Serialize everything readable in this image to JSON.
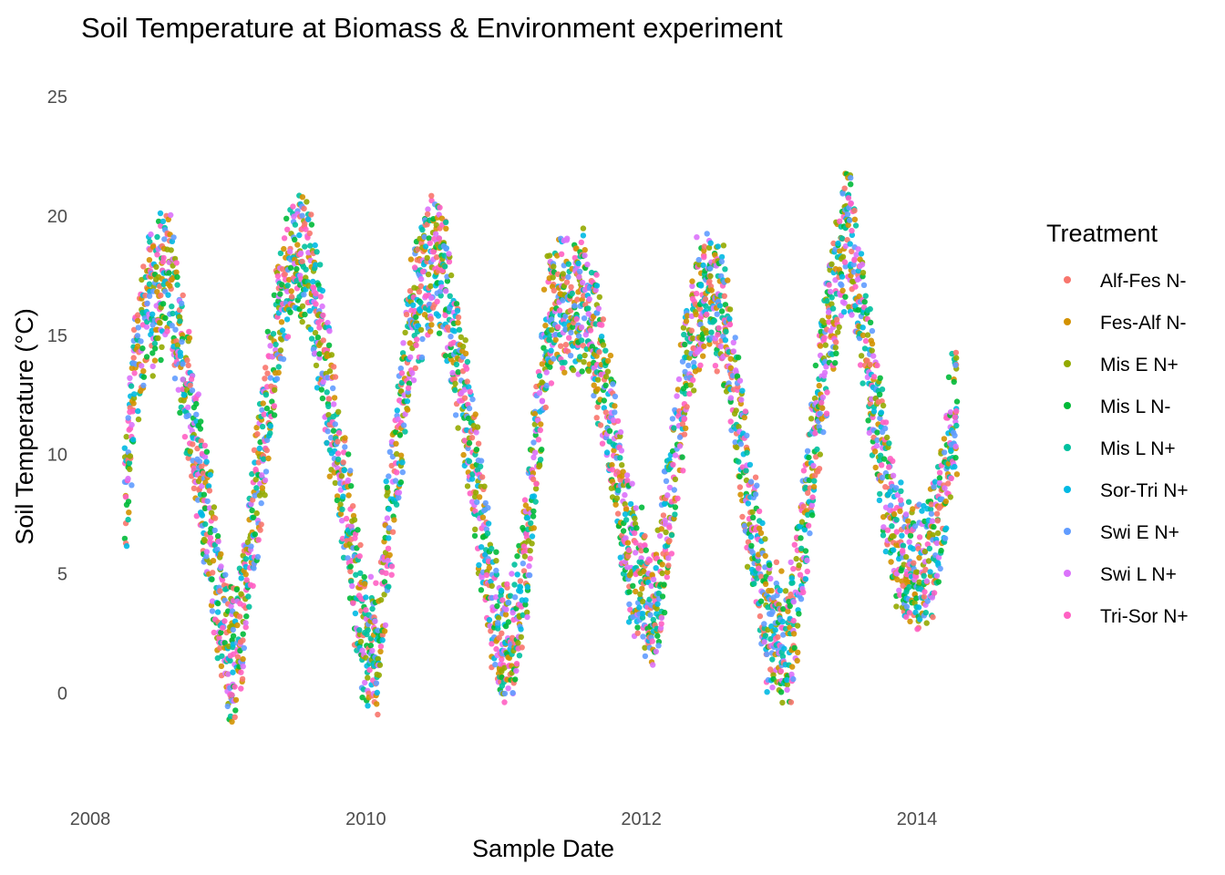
{
  "chart_data": {
    "type": "scatter",
    "title": "Soil Temperature at Biomass & Environment experiment",
    "xlabel": "Sample Date",
    "ylabel": "Soil Temperature (°C)",
    "x_ticks": [
      "2008",
      "2010",
      "2012",
      "2014"
    ],
    "y_ticks": [
      "0",
      "5",
      "10",
      "15",
      "20",
      "25"
    ],
    "xlim": [
      "2008-01-01",
      "2014-07-01"
    ],
    "ylim": [
      -4,
      26
    ],
    "grid": false,
    "legend": {
      "title": "Treatment",
      "position": "right"
    },
    "series": [
      {
        "name": "Alf-Fes N-",
        "color": "#F8766D"
      },
      {
        "name": "Fes-Alf N-",
        "color": "#D39200"
      },
      {
        "name": "Mis E N+",
        "color": "#93AA00"
      },
      {
        "name": "Mis L N-",
        "color": "#00BA38"
      },
      {
        "name": "Mis L N+",
        "color": "#00C19F"
      },
      {
        "name": "Sor-Tri N+",
        "color": "#00B9E3"
      },
      {
        "name": "Swi E N+",
        "color": "#619CFF"
      },
      {
        "name": "Swi L N+",
        "color": "#DB72FB"
      },
      {
        "name": "Tri-Sor N+",
        "color": "#FF61C3"
      }
    ],
    "seasonal_profile": {
      "x": [
        "2008-04-01",
        "2008-05-01",
        "2008-06-01",
        "2008-07-01",
        "2008-08-01",
        "2008-09-01",
        "2008-10-01",
        "2008-11-01",
        "2008-12-01",
        "2009-01-01",
        "2009-02-01",
        "2009-03-01",
        "2009-04-01",
        "2009-05-01",
        "2009-06-01",
        "2009-07-01",
        "2009-08-01",
        "2009-09-01",
        "2009-10-01",
        "2009-11-01",
        "2009-12-01",
        "2010-01-01",
        "2010-02-01",
        "2010-03-01",
        "2010-04-01",
        "2010-05-01",
        "2010-06-01",
        "2010-07-01",
        "2010-08-01",
        "2010-09-01",
        "2010-10-01",
        "2010-11-01",
        "2010-12-01",
        "2011-01-01",
        "2011-02-01",
        "2011-03-01",
        "2011-04-01",
        "2011-05-01",
        "2011-06-01",
        "2011-07-01",
        "2011-08-01",
        "2011-09-01",
        "2011-10-01",
        "2011-11-01",
        "2011-12-01",
        "2012-01-01",
        "2012-02-01",
        "2012-03-01",
        "2012-04-01",
        "2012-05-01",
        "2012-06-01",
        "2012-07-01",
        "2012-08-01",
        "2012-09-01",
        "2012-10-01",
        "2012-11-01",
        "2012-12-01",
        "2013-01-01",
        "2013-02-01",
        "2013-03-01",
        "2013-04-01",
        "2013-05-01",
        "2013-06-01",
        "2013-07-01",
        "2013-08-01",
        "2013-09-01",
        "2013-10-01",
        "2013-11-01",
        "2013-12-01",
        "2014-01-01",
        "2014-02-01",
        "2014-03-01",
        "2014-04-01",
        "2014-05-01"
      ],
      "y": [
        7.5,
        14,
        16,
        17,
        17.5,
        14,
        11,
        8,
        4.5,
        1.5,
        2.5,
        6,
        10,
        14,
        17,
        18.5,
        18,
        15,
        12,
        9,
        5,
        2,
        2,
        7,
        11,
        15.5,
        17,
        18.5,
        17,
        14,
        11,
        7.5,
        3.5,
        2,
        3,
        5.5,
        11,
        16,
        16.5,
        16.5,
        16.5,
        15,
        12,
        9,
        6,
        5,
        3,
        6,
        10,
        14,
        16.5,
        17,
        16,
        13,
        9.5,
        6,
        3,
        2.5,
        2.5,
        6,
        10,
        14,
        17,
        19.5,
        17,
        13,
        10,
        6.5,
        5.5,
        5.5,
        5.5,
        7,
        11,
        13.5
      ],
      "spread": 2.5
    }
  }
}
